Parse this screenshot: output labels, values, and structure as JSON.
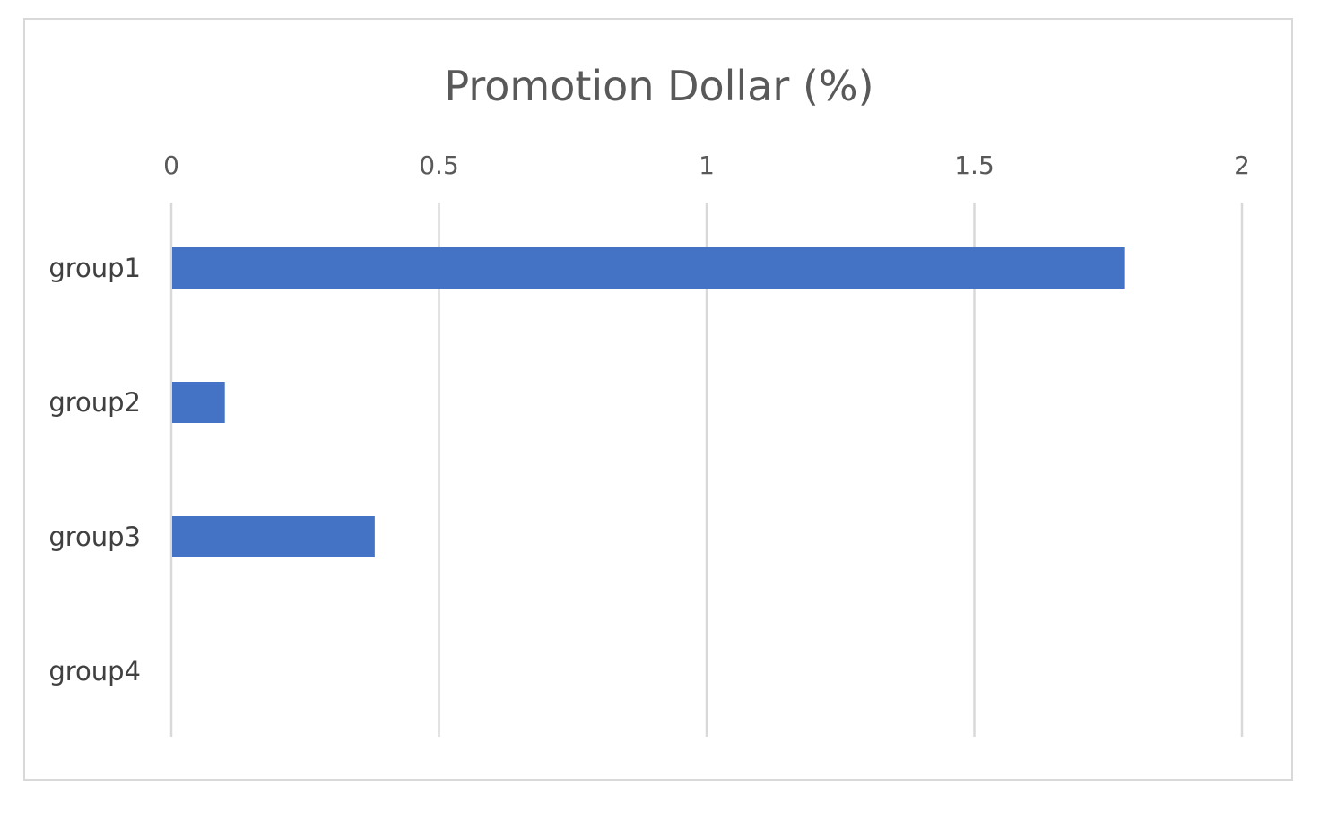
{
  "chart_data": {
    "type": "bar",
    "orientation": "horizontal",
    "title": "Promotion Dollar (%)",
    "categories": [
      "group1",
      "group2",
      "group3",
      "group4"
    ],
    "values": [
      1.78,
      0.1,
      0.38,
      0
    ],
    "xlim": [
      0,
      2
    ],
    "x_ticks": [
      "0",
      "0.5",
      "1",
      "1.5",
      "2"
    ],
    "x_tick_values": [
      0,
      0.5,
      1,
      1.5,
      2
    ],
    "xlabel": "",
    "ylabel": "",
    "x_axis_position": "top",
    "grid": true,
    "legend": "none",
    "colors": {
      "bar": "#4472C4",
      "grid": "#d9d9d9",
      "text": "#595959",
      "frame": "#d9d9d9"
    }
  }
}
